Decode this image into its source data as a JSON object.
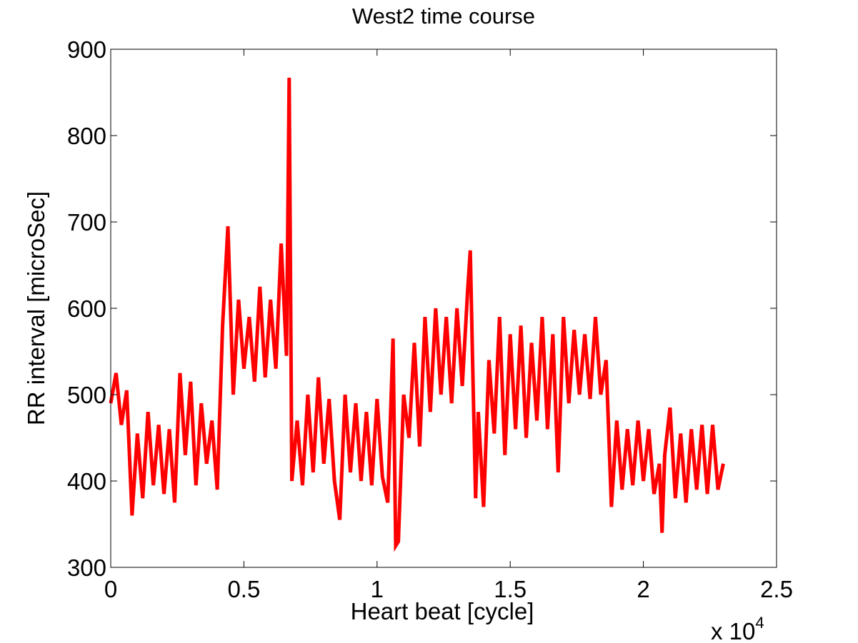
{
  "chart_data": {
    "type": "line",
    "title": "West2 time course",
    "x_label": "Heart beat [cycle]",
    "y_label": "RR interval [microSec]",
    "x_multiplier": {
      "base": "x 10",
      "exponent": "4"
    },
    "xlim": [
      0,
      2.5
    ],
    "xticks": [
      0,
      0.5,
      1,
      1.5,
      2,
      2.5
    ],
    "ylim": [
      300,
      900
    ],
    "yticks": [
      300,
      400,
      500,
      600,
      700,
      800,
      900
    ],
    "x": [
      0,
      0.02,
      0.04,
      0.06,
      0.08,
      0.1,
      0.12,
      0.14,
      0.16,
      0.18,
      0.2,
      0.22,
      0.24,
      0.26,
      0.28,
      0.3,
      0.32,
      0.34,
      0.36,
      0.38,
      0.4,
      0.42,
      0.44,
      0.46,
      0.48,
      0.5,
      0.52,
      0.54,
      0.56,
      0.58,
      0.6,
      0.62,
      0.64,
      0.66,
      0.67,
      0.68,
      0.7,
      0.72,
      0.74,
      0.76,
      0.78,
      0.8,
      0.82,
      0.84,
      0.86,
      0.88,
      0.9,
      0.92,
      0.94,
      0.96,
      0.98,
      1,
      1.02,
      1.04,
      1.06,
      1.07,
      1.08,
      1.1,
      1.12,
      1.14,
      1.16,
      1.18,
      1.2,
      1.22,
      1.24,
      1.26,
      1.28,
      1.3,
      1.32,
      1.34,
      1.35,
      1.36,
      1.37,
      1.38,
      1.4,
      1.42,
      1.44,
      1.46,
      1.48,
      1.5,
      1.52,
      1.54,
      1.56,
      1.58,
      1.6,
      1.62,
      1.64,
      1.66,
      1.68,
      1.7,
      1.72,
      1.74,
      1.76,
      1.78,
      1.8,
      1.82,
      1.84,
      1.86,
      1.88,
      1.9,
      1.92,
      1.94,
      1.96,
      1.98,
      2,
      2.02,
      2.04,
      2.06,
      2.07,
      2.08,
      2.1,
      2.12,
      2.14,
      2.16,
      2.18,
      2.2,
      2.22,
      2.24,
      2.26,
      2.28,
      2.3
    ],
    "series": [
      {
        "name": "RR interval",
        "color": "#ff0000",
        "values": [
          490,
          525,
          465,
          505,
          360,
          455,
          380,
          480,
          395,
          465,
          385,
          460,
          375,
          525,
          430,
          515,
          395,
          490,
          420,
          470,
          390,
          580,
          695,
          500,
          610,
          530,
          590,
          515,
          625,
          520,
          610,
          530,
          675,
          545,
          867,
          400,
          470,
          395,
          500,
          410,
          520,
          420,
          495,
          400,
          355,
          500,
          410,
          490,
          400,
          480,
          395,
          495,
          405,
          375,
          565,
          325,
          330,
          500,
          450,
          560,
          440,
          590,
          480,
          600,
          500,
          590,
          490,
          600,
          510,
          620,
          667,
          520,
          380,
          480,
          370,
          540,
          455,
          590,
          430,
          570,
          460,
          580,
          450,
          560,
          470,
          590,
          460,
          570,
          410,
          590,
          490,
          575,
          500,
          570,
          495,
          590,
          500,
          540,
          370,
          470,
          390,
          460,
          395,
          470,
          400,
          460,
          385,
          420,
          340,
          430,
          485,
          380,
          455,
          375,
          460,
          390,
          465,
          385,
          465,
          390,
          420
        ]
      }
    ]
  }
}
